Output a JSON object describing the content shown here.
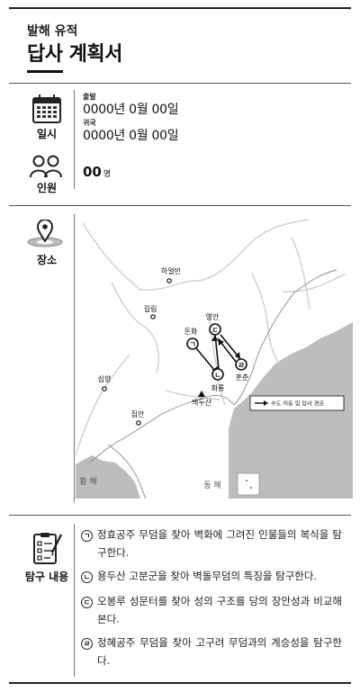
{
  "header": {
    "eyebrow": "발해 유적",
    "title": "답사 계획서"
  },
  "schedule": {
    "label": "일시",
    "icon": "calendar-icon",
    "depart_label": "출발",
    "depart_value": "0000년 0월 00일",
    "return_label": "귀국",
    "return_value": "0000년 0월 00일"
  },
  "people": {
    "label": "인원",
    "icon": "people-icon",
    "count": "00",
    "unit": "명"
  },
  "place": {
    "label": "장소",
    "icon": "location-pin-icon",
    "map": {
      "cities": [
        "하얼빈",
        "길림",
        "돈화",
        "영안",
        "훈춘",
        "화룡",
        "심양",
        "집안",
        "백두산"
      ],
      "sea_west": "황 해",
      "sea_east": "동 해",
      "route_markers": [
        "㉠",
        "㉡",
        "㉢",
        "㉣"
      ],
      "legend": "수도 이동 및 답사 경로"
    }
  },
  "inquiry": {
    "label": "탐구 내용",
    "icon": "checklist-icon",
    "items": [
      {
        "marker": "ㄱ",
        "text": "정효공주 무덤을 찾아 벽화에 그려진 인물들의 복식을 탐구한다."
      },
      {
        "marker": "ㄴ",
        "text": "용두산 고분군을 찾아 벽돌무덤의 특징을 탐구한다."
      },
      {
        "marker": "ㄷ",
        "text": "오봉루 성문터를 찾아 성의 구조를 당의 장안성과 비교해 본다."
      },
      {
        "marker": "ㄹ",
        "text": "정혜공주 무덤을 찾아 고구려 무덤과의 계승성을 탐구한다."
      }
    ]
  }
}
